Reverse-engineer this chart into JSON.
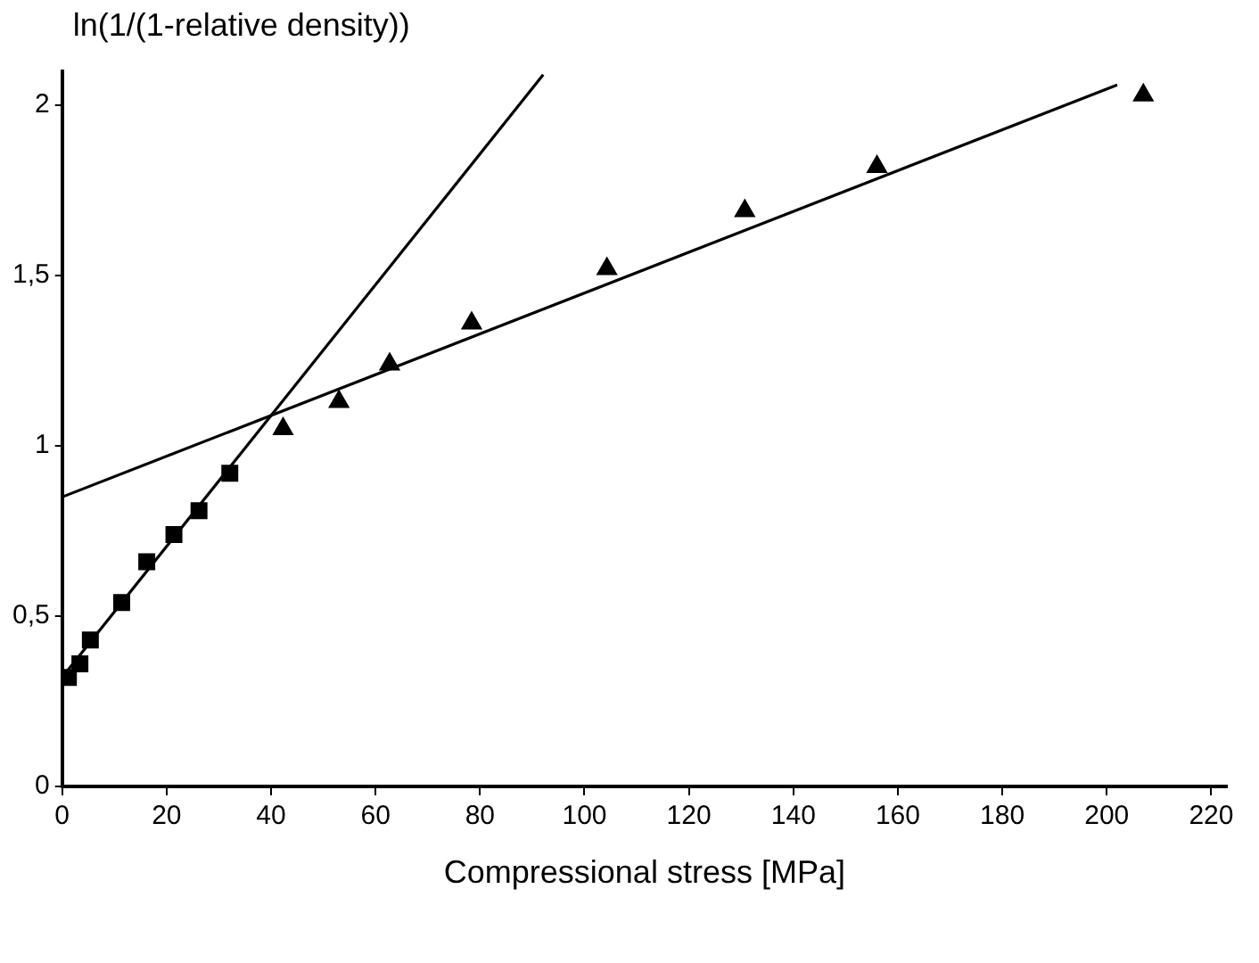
{
  "chart_data": {
    "type": "scatter",
    "ylabel": "ln(1/(1-relative density))",
    "xlabel": "Compressional stress [MPa]",
    "xlim": [
      0,
      223
    ],
    "xticks": [
      0,
      20,
      40,
      60,
      80,
      100,
      120,
      140,
      160,
      180,
      200,
      220
    ],
    "ylim": [
      0,
      2.1
    ],
    "yticks": [
      0,
      {
        "value": 0.5,
        "label": "0,5"
      },
      1,
      {
        "value": 1.5,
        "label": "1,5"
      },
      2
    ],
    "grid": false,
    "legend": false,
    "series": [
      {
        "marker": "square",
        "color": "#000000",
        "x": [
          1.2,
          3.4,
          5.4,
          11.4,
          16.2,
          21.4,
          26.2,
          32.1
        ],
        "values": [
          0.32,
          0.36,
          0.43,
          0.54,
          0.66,
          0.74,
          0.81,
          0.92
        ]
      },
      {
        "marker": "triangle",
        "color": "#000000",
        "x": [
          42.3,
          53,
          62.7,
          78.4,
          104.3,
          130.7,
          156,
          207
        ],
        "values": [
          1.05,
          1.13,
          1.24,
          1.36,
          1.52,
          1.69,
          1.82,
          2.03
        ]
      },
      {
        "type": "line",
        "marker": "none",
        "color": "#000000",
        "x": [
          1,
          92.1
        ],
        "values": [
          0.34,
          2.09
        ]
      },
      {
        "type": "line",
        "marker": "none",
        "color": "#000000",
        "x": [
          0,
          202
        ],
        "values": [
          0.85,
          2.06
        ]
      }
    ]
  }
}
